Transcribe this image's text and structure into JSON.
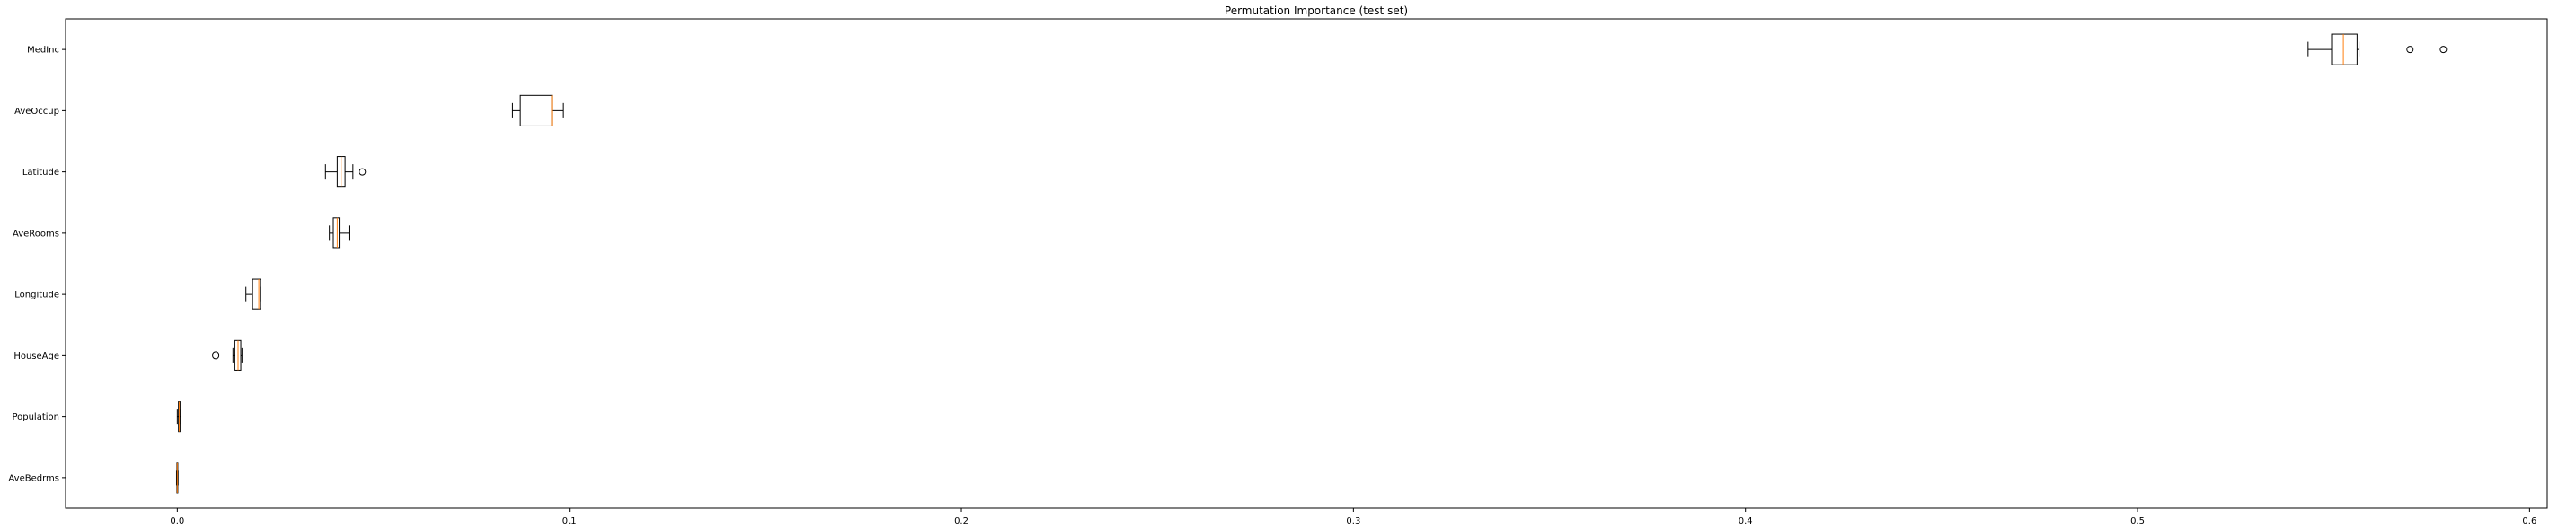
{
  "chart_data": {
    "type": "boxplot",
    "orientation": "horizontal",
    "title": "Permutation Importance (test set)",
    "xlabel": "",
    "ylabel": "",
    "xlim": [
      -0.0285,
      0.6045
    ],
    "xticks": [
      0.0,
      0.1,
      0.2,
      0.3,
      0.4,
      0.5,
      0.6
    ],
    "xtick_labels": [
      "0.0",
      "0.1",
      "0.2",
      "0.3",
      "0.4",
      "0.5",
      "0.6"
    ],
    "grid": false,
    "colors": {
      "box_edge": "#000000",
      "median": "#ff7f0e",
      "whisker": "#000000",
      "flier_edge": "#000000"
    },
    "categories": [
      "MedInc",
      "AveOccup",
      "Latitude",
      "AveRooms",
      "Longitude",
      "HouseAge",
      "Population",
      "AveBedrms"
    ],
    "boxes": [
      {
        "label": "MedInc",
        "whislo": 0.5435,
        "q1": 0.5495,
        "med": 0.5525,
        "q3": 0.556,
        "whishi": 0.5565,
        "fliers": [
          0.5695,
          0.578
        ]
      },
      {
        "label": "AveOccup",
        "whislo": 0.0855,
        "q1": 0.0875,
        "med": 0.0955,
        "q3": 0.0955,
        "whishi": 0.0985,
        "fliers": []
      },
      {
        "label": "Latitude",
        "whislo": 0.0378,
        "q1": 0.0408,
        "med": 0.0418,
        "q3": 0.0428,
        "whishi": 0.0448,
        "fliers": [
          0.0472
        ]
      },
      {
        "label": "AveRooms",
        "whislo": 0.0388,
        "q1": 0.0398,
        "med": 0.0408,
        "q3": 0.0413,
        "whishi": 0.0438,
        "fliers": []
      },
      {
        "label": "Longitude",
        "whislo": 0.0175,
        "q1": 0.0192,
        "med": 0.0208,
        "q3": 0.0212,
        "whishi": 0.0212,
        "fliers": []
      },
      {
        "label": "HouseAge",
        "whislo": 0.0142,
        "q1": 0.0145,
        "med": 0.0155,
        "q3": 0.0162,
        "whishi": 0.0165,
        "fliers": [
          0.0098
        ]
      },
      {
        "label": "Population",
        "whislo": 0.0,
        "q1": 0.0003,
        "med": 0.0005,
        "q3": 0.0007,
        "whishi": 0.0009,
        "fliers": []
      },
      {
        "label": "AveBedrms",
        "whislo": -0.0002,
        "q1": -0.0001,
        "med": 0.0,
        "q3": 0.0001,
        "whishi": 0.0002,
        "fliers": []
      }
    ]
  }
}
